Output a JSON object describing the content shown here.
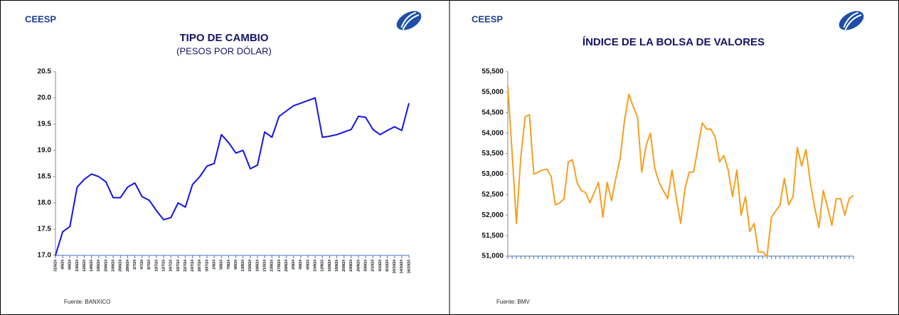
{
  "brand": "CEESP",
  "chart_data": [
    {
      "type": "line",
      "title": "TIPO DE CAMBIO",
      "subtitle": "(PESOS POR DÓLAR)",
      "source": "Fuente: BANXICO",
      "color": "#1414e6",
      "categories": [
        "31/5/24",
        "4/6/24",
        "6/6/24",
        "10/6/24",
        "12/6/24",
        "14/6/24",
        "18/6/24",
        "20/6/24",
        "24/6/24",
        "26/6/24",
        "28/6/24",
        "2/7/24",
        "4/7/24",
        "8/7/24",
        "10/7/24",
        "12/7/24",
        "16/7/24",
        "18/7/24",
        "22/7/24",
        "24/7/24",
        "26/7/24",
        "30/7/24",
        "1/8/24",
        "5/8/24",
        "7/8/24",
        "9/8/24",
        "13/8/24",
        "15/8/24",
        "19/8/24",
        "21/8/24",
        "23/8/24",
        "27/8/24",
        "29/8/24",
        "2/9/24",
        "4/9/24",
        "6/9/24",
        "10/9/24",
        "12/9/24",
        "16/9/24",
        "18/9/24",
        "20/9/24",
        "24/9/24",
        "26/9/24",
        "30/9/24",
        "2/10/24",
        "4/10/24",
        "8/10/24",
        "10/10/24",
        "14/10/24",
        "16/10/24"
      ],
      "values": [
        17.0,
        17.45,
        17.55,
        18.3,
        18.45,
        18.55,
        18.5,
        18.4,
        18.1,
        18.1,
        18.3,
        18.38,
        18.12,
        18.05,
        17.85,
        17.68,
        17.72,
        18.0,
        17.92,
        18.35,
        18.5,
        18.7,
        18.75,
        19.3,
        19.15,
        18.95,
        19.0,
        18.65,
        18.72,
        19.35,
        19.25,
        19.65,
        19.75,
        19.85,
        19.9,
        19.95,
        20.0,
        19.25,
        19.27,
        19.3,
        19.35,
        19.4,
        19.65,
        19.63,
        19.4,
        19.3,
        19.38,
        19.45,
        19.38,
        19.9
      ],
      "ylim": [
        17.0,
        20.5
      ],
      "yticks": [
        {
          "value": 17.0,
          "label": "17.0"
        },
        17.5,
        {
          "value": 18.0,
          "label": "18.0"
        },
        18.5,
        {
          "value": 19.0,
          "label": "19.0"
        },
        19.5,
        {
          "value": 20.0,
          "label": "20.0"
        },
        20.5
      ]
    },
    {
      "type": "line",
      "title": "ÍNDICE DE LA BOLSA DE VALORES",
      "source": "Fuente: BMV",
      "color": "#f5a01e",
      "values": [
        55150,
        53500,
        51800,
        53400,
        54400,
        54450,
        53000,
        53050,
        53100,
        53120,
        52950,
        52250,
        52300,
        52400,
        53300,
        53350,
        52800,
        52600,
        52550,
        52300,
        52550,
        52800,
        51950,
        52800,
        52350,
        52900,
        53400,
        54300,
        54950,
        54650,
        54400,
        53050,
        53700,
        54000,
        53150,
        52800,
        52600,
        52400,
        53100,
        52400,
        51800,
        52650,
        53050,
        53050,
        53650,
        54250,
        54100,
        54100,
        53900,
        53300,
        53450,
        53100,
        52450,
        53100,
        52000,
        52450,
        51600,
        51800,
        51100,
        51100,
        51000,
        51950,
        52100,
        52250,
        52900,
        52250,
        52450,
        53650,
        53200,
        53600,
        52800,
        52200,
        51700,
        52600,
        52200,
        51750,
        52400,
        52400,
        52000,
        52400,
        52480
      ],
      "ylim": [
        51000,
        55500
      ],
      "yticks": [
        {
          "value": 51000,
          "label": "51,000"
        },
        {
          "value": 51500,
          "label": "51,500"
        },
        {
          "value": 52000,
          "label": "52,000"
        },
        {
          "value": 52500,
          "label": "52,500"
        },
        {
          "value": 53000,
          "label": "53,000"
        },
        {
          "value": 53500,
          "label": "53,500"
        },
        {
          "value": 54000,
          "label": "54,000"
        },
        {
          "value": 54500,
          "label": "54,500"
        },
        {
          "value": 55000,
          "label": "55,000"
        },
        {
          "value": 55500,
          "label": "55,500"
        }
      ]
    }
  ]
}
